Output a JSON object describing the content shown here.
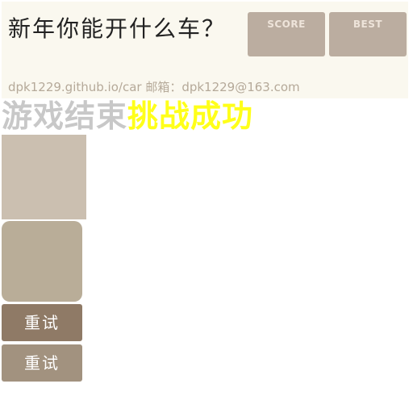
{
  "header": {
    "title": "新年你能开什么车？",
    "score_label": "SCORE",
    "score_value": "",
    "best_label": "BEST",
    "best_value": "",
    "footer": "dpk1229.github.io/car  邮箱：dpk1229@163.com"
  },
  "game_over": {
    "lose_text": "游戏结束",
    "win_text": "挑战成功"
  },
  "buttons": {
    "retry_1": "重试",
    "retry_2": "重试"
  },
  "colors": {
    "header_bg": "#faf8ef",
    "score_bg": "#bbada0",
    "win_text": "#ffff1a",
    "lose_text": "#c8c8c8",
    "button_primary": "#8f7a66",
    "button_secondary": "#a2927f"
  }
}
